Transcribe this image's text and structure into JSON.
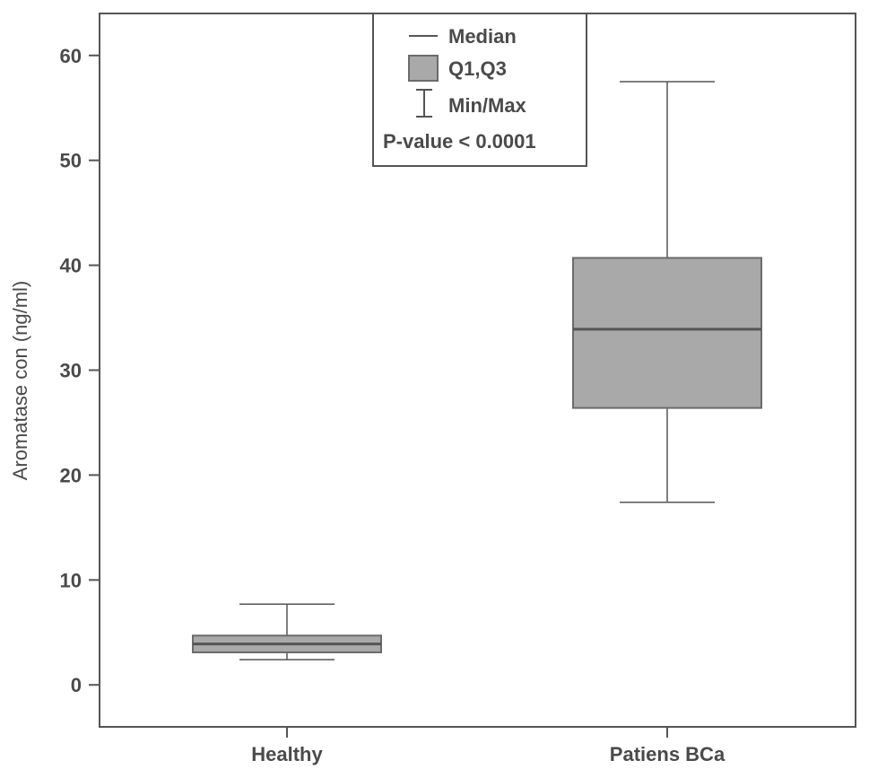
{
  "chart_data": {
    "type": "boxplot",
    "ylabel": "Aromatase con (ng/ml)",
    "ylim": [
      -4,
      64
    ],
    "yticks": [
      0,
      10,
      20,
      30,
      40,
      50,
      60
    ],
    "categories": [
      "Healthy",
      "Patiens BCa"
    ],
    "boxes": [
      {
        "category": "Healthy",
        "min": 2.4,
        "q1": 3.1,
        "median": 3.9,
        "q3": 4.7,
        "max": 7.7
      },
      {
        "category": "Patiens BCa",
        "min": 17.4,
        "q1": 26.4,
        "median": 33.9,
        "q3": 40.7,
        "max": 57.5
      }
    ],
    "legend": {
      "placement": "top-center",
      "median_label": "Median",
      "box_label": "Q1,Q3",
      "whisker_label": "Min/Max",
      "note": "P-value < 0.0001"
    },
    "colors": {
      "box_fill": "#a9a9a9",
      "box_stroke": "#6b6b6b",
      "median": "#555555",
      "axis": "#555555",
      "text": "#4a4a4a"
    },
    "grid": false
  }
}
